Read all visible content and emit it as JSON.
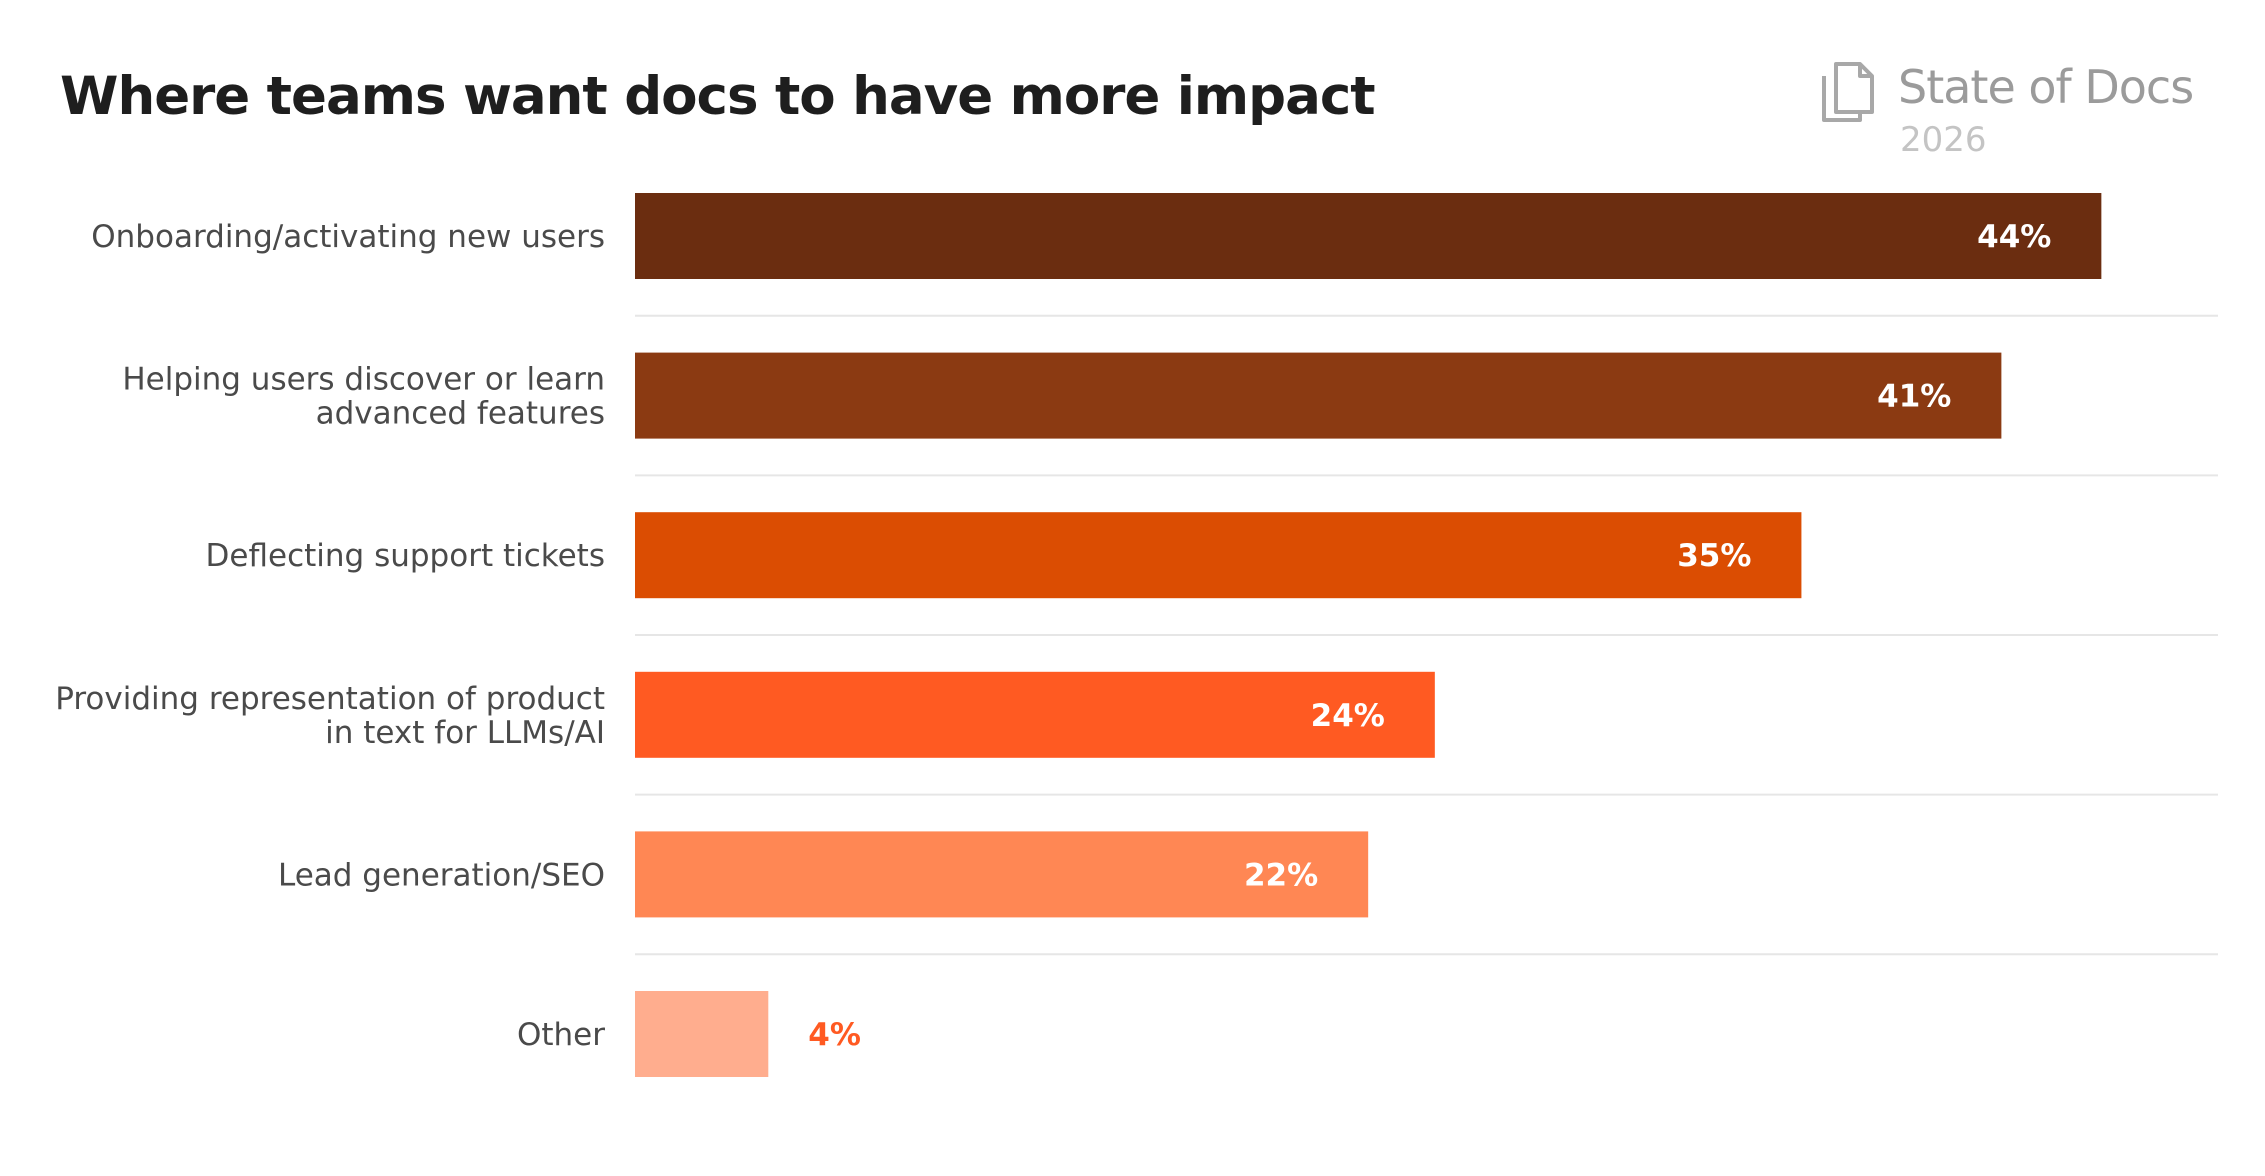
{
  "brand": {
    "name": "State of Docs",
    "year": "2026",
    "icon": "documents-icon"
  },
  "chart_data": {
    "type": "bar",
    "orientation": "horizontal",
    "title": "Where teams want docs to have more impact",
    "categories": [
      [
        "Onboarding/activating new users"
      ],
      [
        "Helping users discover or learn",
        "advanced features"
      ],
      [
        "Deflecting support tickets"
      ],
      [
        "Providing representation of product",
        "in text for LLMs/AI"
      ],
      [
        "Lead generation/SEO"
      ],
      [
        "Other"
      ]
    ],
    "values": [
      44,
      41,
      35,
      24,
      22,
      4
    ],
    "value_labels": [
      "44%",
      "41%",
      "35%",
      "24%",
      "22%",
      "4%"
    ],
    "colors": [
      "#6b2d10",
      "#8b3a12",
      "#db4d02",
      "#ff5a22",
      "#ff8754",
      "#ffad8e"
    ],
    "value_label_colors": [
      "#ffffff",
      "#ffffff",
      "#ffffff",
      "#ffffff",
      "#ffffff",
      "#ff5a22"
    ],
    "xlim": [
      0,
      47.5
    ],
    "xlabel": "",
    "ylabel": "",
    "grid": false
  }
}
